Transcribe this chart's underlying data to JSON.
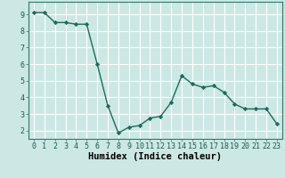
{
  "x": [
    0,
    1,
    2,
    3,
    4,
    5,
    6,
    7,
    8,
    9,
    10,
    11,
    12,
    13,
    14,
    15,
    16,
    17,
    18,
    19,
    20,
    21,
    22,
    23
  ],
  "y": [
    9.1,
    9.1,
    8.5,
    8.5,
    8.4,
    8.4,
    6.0,
    3.5,
    1.85,
    2.2,
    2.3,
    2.75,
    2.85,
    3.7,
    5.3,
    4.8,
    4.6,
    4.7,
    4.3,
    3.6,
    3.3,
    3.3,
    3.3,
    2.4
  ],
  "line_color": "#1a6b5a",
  "marker": "D",
  "marker_size": 2.2,
  "linewidth": 1.0,
  "xlabel": "Humidex (Indice chaleur)",
  "xlim": [
    -0.5,
    23.5
  ],
  "ylim": [
    1.5,
    9.75
  ],
  "yticks": [
    2,
    3,
    4,
    5,
    6,
    7,
    8,
    9
  ],
  "xtick_labels": [
    "0",
    "1",
    "2",
    "3",
    "4",
    "5",
    "6",
    "7",
    "8",
    "9",
    "10",
    "11",
    "12",
    "13",
    "14",
    "15",
    "16",
    "17",
    "18",
    "19",
    "20",
    "21",
    "22",
    "23"
  ],
  "bg_color": "#cce8e4",
  "grid_color": "#ffffff",
  "tick_label_fontsize": 6.0,
  "xlabel_fontsize": 7.5,
  "spine_color": "#2a7a6a"
}
